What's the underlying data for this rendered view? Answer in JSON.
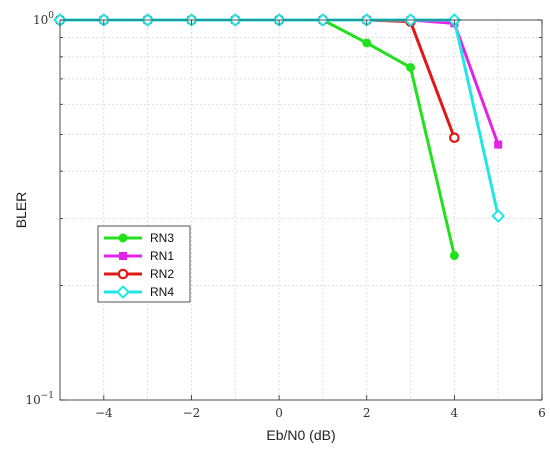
{
  "chart_data": {
    "type": "line",
    "xlabel": "Eb/N0 (dB)",
    "ylabel": "BLER",
    "xlim": [
      -5,
      6
    ],
    "ylim": [
      0.1,
      1
    ],
    "yscale": "log",
    "grid": true,
    "legend_position": "center-left",
    "x_ticks": [
      -4,
      -2,
      0,
      2,
      4,
      6
    ],
    "x_tick_labels": [
      "−4",
      "−2",
      "0",
      "2",
      "4",
      "6"
    ],
    "y_ticks": [
      {
        "value": 1,
        "base": "10",
        "exp": "0"
      },
      {
        "value": 0.1,
        "base": "10",
        "exp": "−1"
      }
    ],
    "series": [
      {
        "name": "RN3",
        "color": "#22e01c",
        "marker": "filled-circle",
        "x": [
          -5,
          -4,
          -3,
          -2,
          -1,
          0,
          1,
          2,
          3,
          4
        ],
        "y": [
          1,
          1,
          1,
          1,
          1,
          1,
          1,
          0.87,
          0.75,
          0.24
        ]
      },
      {
        "name": "RN1",
        "color": "#e722e7",
        "marker": "filled-square",
        "x": [
          -5,
          -4,
          -3,
          -2,
          -1,
          0,
          1,
          2,
          3,
          4,
          5
        ],
        "y": [
          1,
          1,
          1,
          1,
          1,
          1,
          1,
          1,
          1,
          0.98,
          0.47
        ]
      },
      {
        "name": "RN2",
        "color": "#e01818",
        "marker": "open-circle",
        "x": [
          -5,
          -4,
          -3,
          -2,
          -1,
          0,
          1,
          2,
          3,
          4
        ],
        "y": [
          1,
          1,
          1,
          1,
          1,
          1,
          1,
          1,
          0.99,
          0.49
        ]
      },
      {
        "name": "RN4",
        "color": "#22e6e6",
        "marker": "diamond",
        "x": [
          -5,
          -4,
          -3,
          -2,
          -1,
          0,
          1,
          2,
          3,
          4,
          5
        ],
        "y": [
          1,
          1,
          1,
          1,
          1,
          1,
          1,
          1,
          1,
          1,
          0.305
        ]
      }
    ]
  }
}
